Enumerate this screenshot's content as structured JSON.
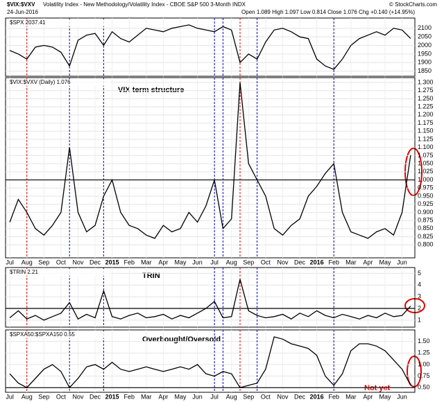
{
  "header": {
    "symbol": "$VIX:$VXV",
    "description": "Volatility Index - New Methodology/Volatility Index - CBOE S&P 500 3-Month INDX",
    "date": "24-Jun-2016",
    "quote": "Open 1.089 High 1.097 Low 0.814 Close 1.076 Chg +0.140 (+14.95%)",
    "credit": "© StockCharts.com"
  },
  "chart_data": [
    {
      "type": "line",
      "legend": "$SPX 2037.41",
      "color": "#000000",
      "values": [
        1970,
        1950,
        1920,
        1990,
        2000,
        1990,
        1960,
        1880,
        2030,
        2060,
        2070,
        2000,
        2080,
        2040,
        2020,
        2060,
        2100,
        2090,
        2080,
        2100,
        2110,
        2120,
        2100,
        2090,
        2080,
        2110,
        2090,
        1900,
        1950,
        1920,
        2020,
        2090,
        2100,
        2080,
        2050,
        2040,
        1920,
        1880,
        1860,
        1920,
        2000,
        2040,
        2060,
        2080,
        2060,
        2100,
        2090,
        2040
      ],
      "ylim": [
        1820,
        2160
      ],
      "yticks": [
        1850,
        1900,
        1950,
        2000,
        2050,
        2100
      ]
    },
    {
      "type": "line",
      "legend": "$VIX:$VXV (Daily) 1.076",
      "annotation": "VIX term structure",
      "color": "#000000",
      "categories": [
        "Jul",
        null,
        "Aug",
        null,
        "Sep",
        null,
        "Oct",
        null,
        "Nov",
        null,
        "Dec",
        null,
        "2015",
        null,
        "Feb",
        null,
        "Mar",
        null,
        "Apr",
        null,
        "May",
        null,
        "Jun",
        null,
        "Jul",
        null,
        "Aug",
        null,
        "Sep",
        null,
        "Oct",
        null,
        "Nov",
        null,
        "Dec",
        null,
        "2016",
        null,
        "Feb",
        null,
        "Mar",
        null,
        "Apr",
        null,
        "May",
        null,
        "Jun",
        null
      ],
      "values": [
        0.87,
        0.94,
        0.9,
        0.85,
        0.83,
        0.86,
        0.9,
        1.1,
        0.9,
        0.84,
        0.86,
        0.95,
        1.0,
        0.9,
        0.86,
        0.85,
        0.83,
        0.82,
        0.86,
        0.84,
        0.85,
        0.9,
        0.87,
        0.92,
        1.0,
        0.85,
        0.88,
        1.3,
        1.05,
        1.0,
        0.95,
        0.85,
        0.83,
        0.86,
        0.88,
        0.95,
        0.98,
        1.02,
        1.05,
        0.9,
        0.84,
        0.83,
        0.82,
        0.84,
        0.85,
        0.83,
        0.9,
        1.076
      ],
      "hline": 1,
      "ylim": [
        0.76,
        1.315
      ],
      "yticks": [
        {
          "value": 0.8,
          "label": "0.800"
        },
        {
          "value": 0.825,
          "label": "0.825"
        },
        {
          "value": 0.85,
          "label": "0.850"
        },
        {
          "value": 0.875,
          "label": "0.875"
        },
        {
          "value": 0.9,
          "label": "0.900"
        },
        {
          "value": 0.925,
          "label": "0.925"
        },
        {
          "value": 0.95,
          "label": "0.950"
        },
        {
          "value": 0.975,
          "label": "0.975"
        },
        {
          "value": 1,
          "label": "1.000"
        },
        {
          "value": 1.025,
          "label": "1.025"
        },
        {
          "value": 1.05,
          "label": "1.050"
        },
        {
          "value": 1.075,
          "label": "1.075"
        },
        {
          "value": 1.1,
          "label": "1.100"
        },
        {
          "value": 1.125,
          "label": "1.125"
        },
        {
          "value": 1.15,
          "label": "1.150"
        },
        {
          "value": 1.175,
          "label": "1.175"
        },
        {
          "value": 1.2,
          "label": "1.200"
        },
        {
          "value": 1.225,
          "label": "1.225"
        },
        {
          "value": 1.25,
          "label": "1.250"
        },
        {
          "value": 1.275,
          "label": "1.275"
        },
        {
          "value": 1.3,
          "label": "1.300"
        }
      ]
    },
    {
      "type": "line",
      "legend": "$TRIN 2.21",
      "annotation": "TRIN",
      "color": "#000000",
      "values": [
        1.2,
        1.8,
        1.1,
        1.4,
        1.0,
        1.3,
        1.6,
        2.5,
        1.1,
        1.5,
        1.2,
        3.5,
        1.3,
        1.1,
        1.4,
        1.6,
        1.2,
        1.3,
        1.5,
        1.1,
        1.4,
        1.2,
        1.6,
        2.0,
        2.6,
        1.2,
        1.3,
        4.5,
        1.8,
        1.4,
        1.2,
        1.3,
        1.5,
        1.1,
        1.6,
        1.3,
        1.8,
        1.4,
        1.2,
        1.5,
        1.3,
        1.1,
        1.4,
        1.2,
        1.6,
        1.3,
        1.4,
        2.21
      ],
      "hline": 2,
      "ylim": [
        0.4,
        5.5
      ],
      "yticks": [
        1,
        2,
        3,
        4,
        5
      ]
    },
    {
      "type": "line",
      "legend": "$SPXA50:$SPXA150 0.55",
      "annotation": "Overbought/Oversold",
      "note": "Not yet",
      "color": "#000000",
      "values": [
        0.8,
        0.6,
        0.5,
        0.7,
        0.9,
        1.0,
        0.85,
        0.5,
        0.7,
        0.95,
        1.0,
        0.9,
        1.05,
        0.9,
        0.85,
        0.9,
        0.95,
        0.9,
        0.85,
        0.9,
        0.95,
        0.9,
        1.0,
        0.8,
        0.75,
        0.85,
        0.8,
        0.5,
        0.55,
        0.6,
        0.9,
        1.6,
        1.55,
        1.45,
        1.4,
        1.35,
        1.2,
        0.75,
        0.55,
        0.8,
        1.3,
        1.45,
        1.45,
        1.4,
        1.3,
        1.1,
        0.9,
        0.55
      ],
      "hline": 0.5,
      "ylim": [
        0.4,
        1.75
      ],
      "yticks": [
        {
          "value": 0.5,
          "label": "0.50"
        },
        {
          "value": 0.75,
          "label": "0.75"
        },
        {
          "value": 1,
          "label": "1.00"
        },
        {
          "value": 1.25,
          "label": "1.25"
        },
        {
          "value": 1.5,
          "label": "1.50"
        }
      ]
    }
  ]
}
